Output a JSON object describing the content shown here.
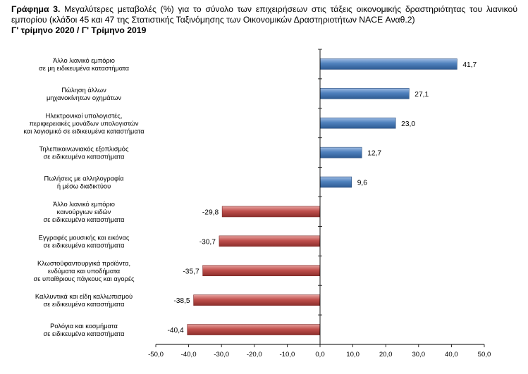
{
  "title": {
    "lead": "Γράφημα 3.",
    "text": " Μεγαλύτερες μεταβολές (%) για το σύνολο των επιχειρήσεων στις τάξεις οικονομικής δραστηριότητας του λιανικού εμπορίου (κλάδοι 45 και 47 της Στατιστικής Ταξινόμησης των Οικονομικών Δραστηριοτήτων NACE Αναθ.2)",
    "period": "Γ' τρίμηνο 2020 / Γ' Τρίμηνο 2019"
  },
  "colors": {
    "positive": "#4f81bd",
    "negative": "#c0504d",
    "axis": "#000000"
  },
  "chart_data": {
    "type": "bar",
    "orientation": "horizontal",
    "categories": [
      [
        "Άλλο λιανικό εμπόριο",
        "σε μη ειδικευμένα καταστήματα"
      ],
      [
        "Πώληση άλλων",
        "μηχανοκίνητων οχημάτων"
      ],
      [
        "Ηλεκτρονικοί υπολογιστές,",
        "περιφερειακές μονάδων υπολογιστών",
        "και λογισμικό σε ειδικευμένα καταστήματα"
      ],
      [
        "Τηλεπικοινωνιακός εξοπλισμός",
        "σε ειδικευμένα καταστήματα"
      ],
      [
        "Πωλήσεις με αλληλογραφία",
        "ή μέσω διαδικτύου"
      ],
      [
        "Άλλο λιανικό εμπόριο",
        "καινούργιων ειδών",
        "σε ειδικευμένα καταστήματα"
      ],
      [
        "Εγγραφές μουσικής και εικόνας",
        "σε ειδικευμένα καταστήματα"
      ],
      [
        "Κλωστοϋφαντουργικά προϊόντα,",
        "ενδύματα και υποδήματα",
        "σε υπαίθριους πάγκους και αγορές"
      ],
      [
        "Καλλυντικά και είδη καλλωπισμού",
        "σε ειδικευμένα καταστήματα"
      ],
      [
        "Ρολόγια και κοσμήματα",
        "σε ειδικευμένα καταστήματα"
      ]
    ],
    "values": [
      41.7,
      27.1,
      23.0,
      12.7,
      9.6,
      -29.8,
      -30.7,
      -35.7,
      -38.5,
      -40.4
    ],
    "value_labels": [
      "41,7",
      "27,1",
      "23,0",
      "12,7",
      "9,6",
      "-29,8",
      "-30,7",
      "-35,7",
      "-38,5",
      "-40,4"
    ],
    "xlim": [
      -50,
      50
    ],
    "xticks": [
      -50,
      -40,
      -30,
      -20,
      -10,
      0,
      10,
      20,
      30,
      40,
      50
    ],
    "xtick_labels": [
      "-50,0",
      "-40,0",
      "-30,0",
      "-20,0",
      "-10,0",
      "0,0",
      "10,0",
      "20,0",
      "30,0",
      "40,0",
      "50,0"
    ],
    "grid": false,
    "legend": "none"
  }
}
